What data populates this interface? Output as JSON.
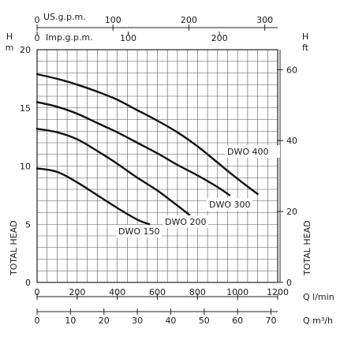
{
  "chart_data": {
    "type": "line",
    "x_unit_label": "Q l/min",
    "y_unit_label_left": "H m",
    "y_unit_label_right": "H ft",
    "total_head_label": "TOTAL HEAD",
    "xlim": [
      0,
      1200
    ],
    "ylim": [
      0,
      20
    ],
    "grid": true,
    "x_ticks": [
      0,
      200,
      400,
      600,
      800,
      1000,
      1200
    ],
    "y_ticks_left": [
      0,
      5,
      10,
      15,
      20
    ],
    "secondary_axes": {
      "us_gpm": {
        "label": "US.g.p.m.",
        "ticks": [
          0,
          100,
          200,
          300
        ]
      },
      "imp_gpm": {
        "label": "Imp.g.p.m.",
        "ticks": [
          0,
          100,
          200
        ]
      },
      "m3h": {
        "label": "Q m³/h",
        "ticks": [
          0,
          10,
          20,
          30,
          40,
          50,
          60,
          70
        ]
      },
      "ft": {
        "label": "H ft",
        "ticks": [
          0,
          20,
          40,
          60
        ]
      }
    },
    "series": [
      {
        "name": "DWO 150",
        "x": [
          0,
          100,
          200,
          300,
          400,
          500,
          560
        ],
        "y": [
          9.8,
          9.5,
          8.6,
          7.5,
          6.4,
          5.4,
          5.0
        ]
      },
      {
        "name": "DWO 200",
        "x": [
          0,
          100,
          200,
          300,
          400,
          500,
          600,
          700,
          760
        ],
        "y": [
          13.2,
          12.9,
          12.3,
          11.3,
          10.2,
          9.0,
          7.9,
          6.6,
          5.8
        ]
      },
      {
        "name": "DWO 300",
        "x": [
          0,
          100,
          200,
          300,
          400,
          500,
          600,
          700,
          800,
          900,
          960
        ],
        "y": [
          15.5,
          15.1,
          14.5,
          13.7,
          12.9,
          12.0,
          11.1,
          10.1,
          9.2,
          8.2,
          7.5
        ]
      },
      {
        "name": "DWO 400",
        "x": [
          0,
          100,
          200,
          300,
          400,
          500,
          600,
          700,
          800,
          900,
          1000,
          1100
        ],
        "y": [
          17.9,
          17.5,
          17.0,
          16.4,
          15.7,
          14.8,
          13.9,
          12.9,
          11.7,
          10.3,
          8.9,
          7.6
        ]
      }
    ],
    "series_labels": [
      "DWO 150",
      "DWO 200",
      "DWO 300",
      "DWO 400"
    ]
  }
}
